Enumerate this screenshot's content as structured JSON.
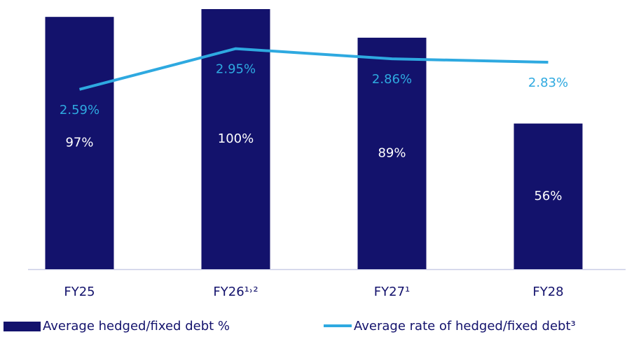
{
  "chart_data": {
    "type": "bar_line",
    "categories": [
      "FY25",
      "FY26¹˒²",
      "FY27¹",
      "FY28"
    ],
    "series": [
      {
        "name": "Average hedged/fixed debt %",
        "type": "bar",
        "color": "#13126c",
        "values": [
          97,
          100,
          89,
          56
        ],
        "value_labels": [
          "97%",
          "100%",
          "89%",
          "56%"
        ]
      },
      {
        "name": "Average rate of hedged/fixed debt³",
        "type": "line",
        "axis": "y2",
        "color": "#2ea9e0",
        "values": [
          2.59,
          2.95,
          2.86,
          2.83
        ],
        "value_labels": [
          "2.59%",
          "2.95%",
          "2.86%",
          "2.83%"
        ]
      }
    ],
    "ylim": [
      0,
      100
    ],
    "y2lim": [
      1,
      3.3
    ],
    "legend": "bottom"
  }
}
